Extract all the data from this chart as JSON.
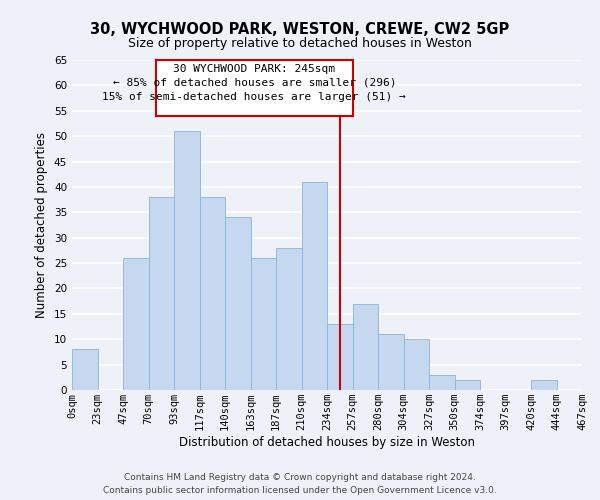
{
  "title": "30, WYCHWOOD PARK, WESTON, CREWE, CW2 5GP",
  "subtitle": "Size of property relative to detached houses in Weston",
  "xlabel": "Distribution of detached houses by size in Weston",
  "ylabel": "Number of detached properties",
  "bin_labels": [
    "0sqm",
    "23sqm",
    "47sqm",
    "70sqm",
    "93sqm",
    "117sqm",
    "140sqm",
    "163sqm",
    "187sqm",
    "210sqm",
    "234sqm",
    "257sqm",
    "280sqm",
    "304sqm",
    "327sqm",
    "350sqm",
    "374sqm",
    "397sqm",
    "420sqm",
    "444sqm",
    "467sqm"
  ],
  "bar_values": [
    8,
    0,
    26,
    38,
    51,
    38,
    34,
    26,
    28,
    41,
    13,
    17,
    11,
    10,
    3,
    2,
    0,
    0,
    2,
    0
  ],
  "bar_color": "#c5d8f0",
  "bar_edge_color": "#8ab4d8",
  "ylim": [
    0,
    65
  ],
  "yticks": [
    0,
    5,
    10,
    15,
    20,
    25,
    30,
    35,
    40,
    45,
    50,
    55,
    60,
    65
  ],
  "vline_x": 10.5,
  "vline_color": "#cc0000",
  "annotation_text_line1": "30 WYCHWOOD PARK: 245sqm",
  "annotation_text_line2": "← 85% of detached houses are smaller (296)",
  "annotation_text_line3": "15% of semi-detached houses are larger (51) →",
  "annotation_box_color": "#cc0000",
  "footer_line1": "Contains HM Land Registry data © Crown copyright and database right 2024.",
  "footer_line2": "Contains public sector information licensed under the Open Government Licence v3.0.",
  "bg_color": "#eef2f8",
  "plot_bg_color": "#eef2f8",
  "grid_color": "#ffffff",
  "title_fontsize": 10.5,
  "subtitle_fontsize": 9,
  "axis_label_fontsize": 8.5,
  "tick_fontsize": 7.5,
  "footer_fontsize": 6.5,
  "annotation_fontsize": 8
}
